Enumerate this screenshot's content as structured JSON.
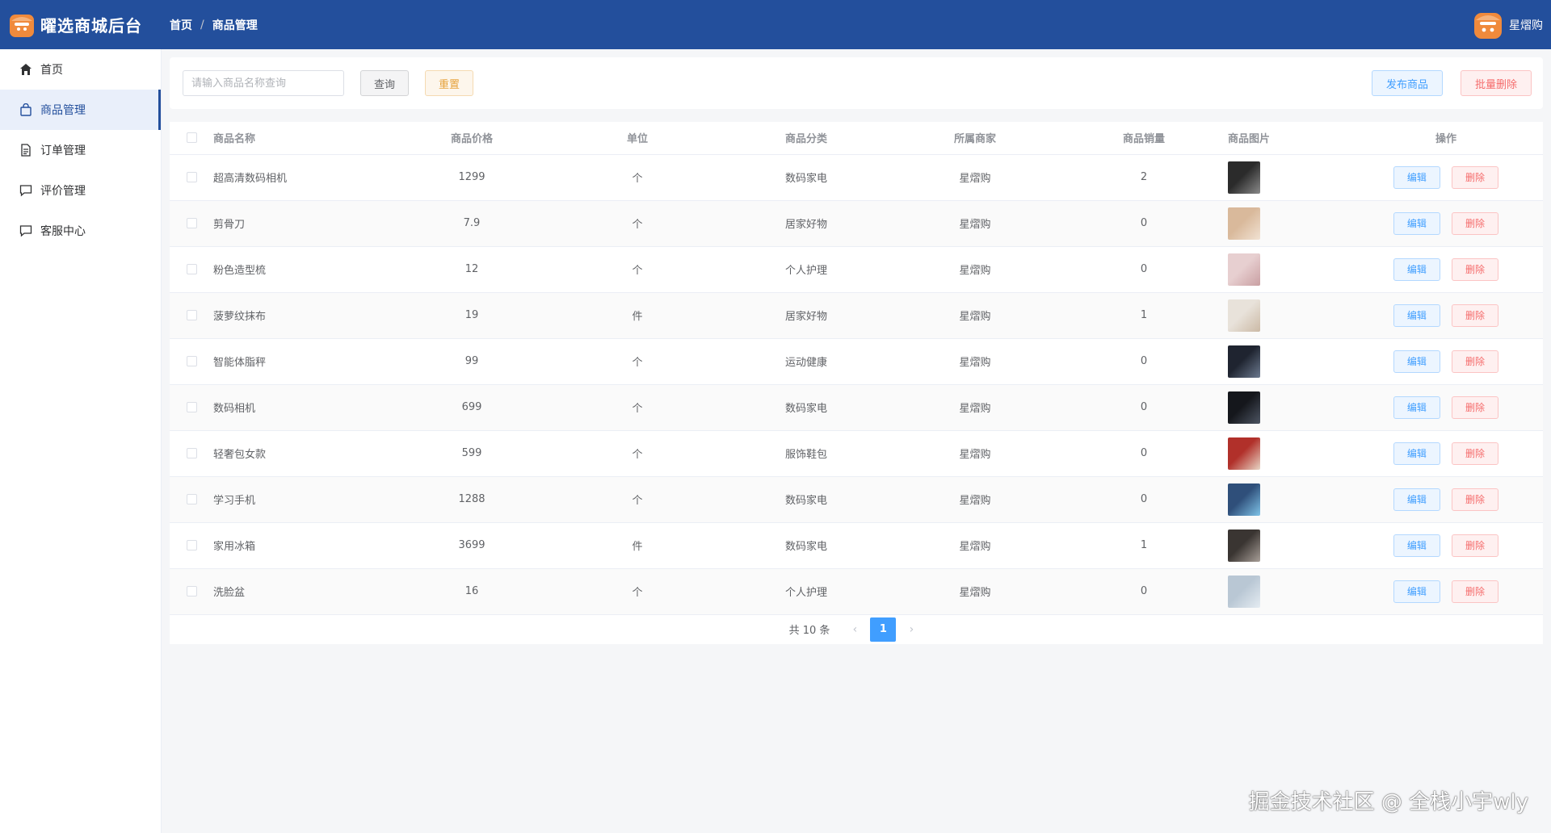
{
  "header": {
    "app_title": "曜选商城后台",
    "breadcrumb": [
      "首页",
      "商品管理"
    ],
    "breadcrumb_sep": "/",
    "username": "星熠购",
    "bg_color": "#234f9c"
  },
  "sidebar": {
    "items": [
      {
        "label": "首页",
        "icon": "home-icon",
        "active": false
      },
      {
        "label": "商品管理",
        "icon": "shopping-bag-icon",
        "active": true
      },
      {
        "label": "订单管理",
        "icon": "document-icon",
        "active": false
      },
      {
        "label": "评价管理",
        "icon": "comment-icon",
        "active": false
      },
      {
        "label": "客服中心",
        "icon": "chat-icon",
        "active": false
      }
    ]
  },
  "toolbar": {
    "search_placeholder": "请输入商品名称查询",
    "query_label": "查询",
    "reset_label": "重置",
    "publish_label": "发布商品",
    "batch_delete_label": "批量删除"
  },
  "table": {
    "headers": [
      "商品名称",
      "商品价格",
      "单位",
      "商品分类",
      "所属商家",
      "商品销量",
      "商品图片",
      "操作"
    ],
    "edit_label": "编辑",
    "delete_label": "删除",
    "rows": [
      {
        "name": "超高清数码相机",
        "price": "1299",
        "unit": "个",
        "category": "数码家电",
        "merchant": "星熠购",
        "sales": "2",
        "thumb": "camera-image"
      },
      {
        "name": "剪骨刀",
        "price": "7.9",
        "unit": "个",
        "category": "居家好物",
        "merchant": "星熠购",
        "sales": "0",
        "thumb": "scissors-image"
      },
      {
        "name": "粉色造型梳",
        "price": "12",
        "unit": "个",
        "category": "个人护理",
        "merchant": "星熠购",
        "sales": "0",
        "thumb": "comb-image"
      },
      {
        "name": "菠萝纹抹布",
        "price": "19",
        "unit": "件",
        "category": "居家好物",
        "merchant": "星熠购",
        "sales": "1",
        "thumb": "cloth-image"
      },
      {
        "name": "智能体脂秤",
        "price": "99",
        "unit": "个",
        "category": "运动健康",
        "merchant": "星熠购",
        "sales": "0",
        "thumb": "scale-image"
      },
      {
        "name": "数码相机",
        "price": "699",
        "unit": "个",
        "category": "数码家电",
        "merchant": "星熠购",
        "sales": "0",
        "thumb": "digital-camera-image"
      },
      {
        "name": "轻奢包女款",
        "price": "599",
        "unit": "个",
        "category": "服饰鞋包",
        "merchant": "星熠购",
        "sales": "0",
        "thumb": "bag-image"
      },
      {
        "name": "学习手机",
        "price": "1288",
        "unit": "个",
        "category": "数码家电",
        "merchant": "星熠购",
        "sales": "0",
        "thumb": "phone-image"
      },
      {
        "name": "家用冰箱",
        "price": "3699",
        "unit": "件",
        "category": "数码家电",
        "merchant": "星熠购",
        "sales": "1",
        "thumb": "fridge-image"
      },
      {
        "name": "洗脸盆",
        "price": "16",
        "unit": "个",
        "category": "个人护理",
        "merchant": "星熠购",
        "sales": "0",
        "thumb": "basin-image"
      }
    ]
  },
  "pagination": {
    "total_label": "共 10 条",
    "current_page": "1"
  },
  "watermark": "掘金技术社区 @ 全栈小宇wly"
}
